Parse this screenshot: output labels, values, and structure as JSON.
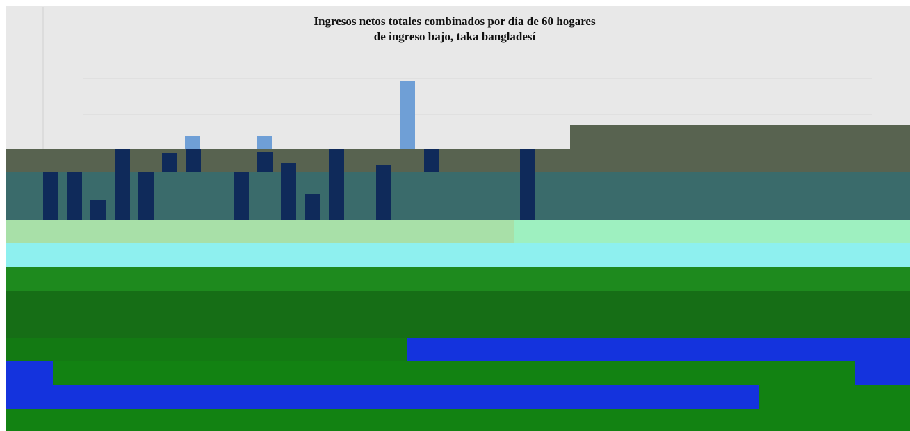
{
  "chart_data": {
    "type": "bar",
    "title": "Ingresos netos totales combinados por día de 60 hogares\nde ingreso bajo, taka bangladesí"
  }
}
